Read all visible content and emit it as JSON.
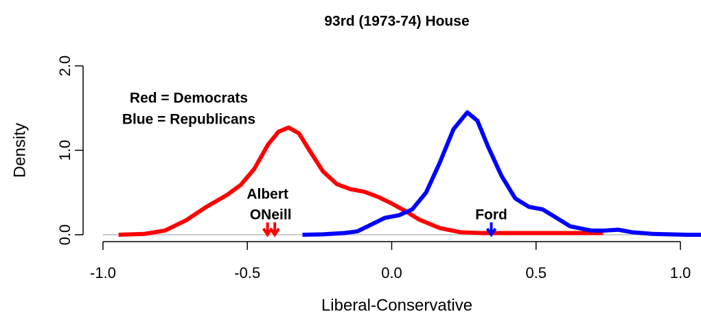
{
  "chart_data": {
    "type": "line",
    "title": "93rd (1973-74) House",
    "x_label": "Liberal-Conservative",
    "y_label": "Density",
    "xlim": [
      -1.0,
      1.0
    ],
    "xticks": [
      {
        "value": -1.0,
        "label": "-1.0"
      },
      {
        "value": -0.5,
        "label": "-0.5"
      },
      {
        "value": 0.0,
        "label": "0.0"
      },
      {
        "value": 0.5,
        "label": "0.5"
      },
      {
        "value": 1.0,
        "label": "1.0"
      }
    ],
    "ylim": [
      0,
      2
    ],
    "yticks": [
      {
        "value": 0,
        "label": "0.0"
      },
      {
        "value": 1,
        "label": "1.0"
      },
      {
        "value": 2,
        "label": "2.0"
      }
    ],
    "legend_text": [
      "Red = Democrats",
      "Blue = Republicans"
    ],
    "series": [
      {
        "name": "Democrats",
        "color": "#ff0000",
        "x": [
          -0.946,
          -0.856,
          -0.785,
          -0.713,
          -0.642,
          -0.571,
          -0.523,
          -0.476,
          -0.428,
          -0.392,
          -0.357,
          -0.321,
          -0.285,
          -0.238,
          -0.19,
          -0.143,
          -0.095,
          -0.048,
          0.0,
          0.048,
          0.095,
          0.166,
          0.238,
          0.309,
          0.428,
          0.547,
          0.642,
          0.732
        ],
        "values": [
          0.0,
          0.01,
          0.05,
          0.17,
          0.33,
          0.47,
          0.59,
          0.78,
          1.07,
          1.22,
          1.27,
          1.2,
          1.0,
          0.75,
          0.6,
          0.54,
          0.51,
          0.45,
          0.37,
          0.28,
          0.18,
          0.08,
          0.03,
          0.02,
          0.02,
          0.02,
          0.02,
          0.02
        ]
      },
      {
        "name": "Republicans",
        "color": "#0000ff",
        "x": [
          -0.309,
          -0.238,
          -0.166,
          -0.119,
          -0.071,
          -0.024,
          0.024,
          0.071,
          0.119,
          0.166,
          0.214,
          0.262,
          0.297,
          0.333,
          0.38,
          0.428,
          0.476,
          0.523,
          0.571,
          0.618,
          0.69,
          0.737,
          0.785,
          0.832,
          0.904,
          1.023,
          1.073
        ],
        "values": [
          0.0,
          0.005,
          0.02,
          0.04,
          0.12,
          0.2,
          0.23,
          0.3,
          0.5,
          0.85,
          1.25,
          1.45,
          1.35,
          1.05,
          0.7,
          0.43,
          0.33,
          0.3,
          0.2,
          0.1,
          0.05,
          0.05,
          0.06,
          0.03,
          0.01,
          0.0,
          0.0
        ]
      }
    ],
    "annotations": [
      {
        "text": "Albert",
        "x": -0.43,
        "color": "#ff0000"
      },
      {
        "text": "ONeill",
        "x": -0.405,
        "color": "#ff0000"
      },
      {
        "text": "Ford",
        "x": 0.345,
        "color": "#0000ff"
      }
    ]
  }
}
